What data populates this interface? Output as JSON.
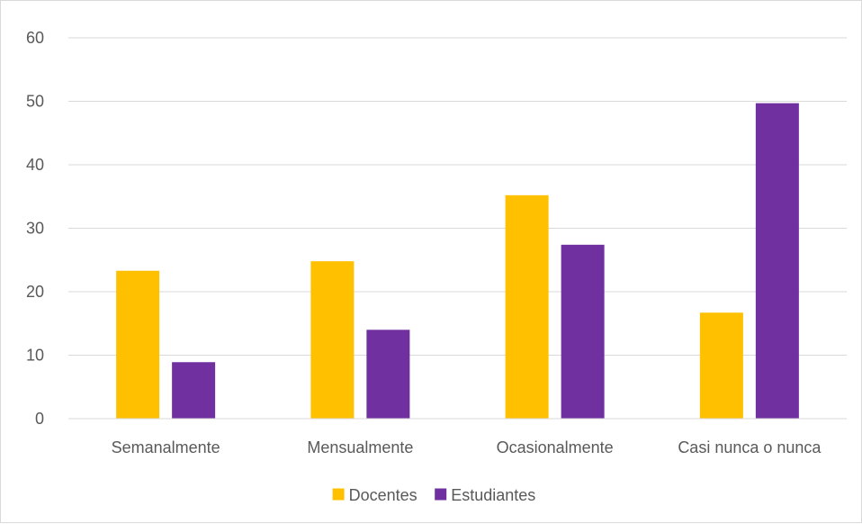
{
  "chart_data": {
    "type": "bar",
    "categories": [
      "Semanalmente",
      "Mensualmente",
      "Ocasionalmente",
      "Casi nunca o nunca"
    ],
    "series": [
      {
        "name": "Docentes",
        "values": [
          23.3,
          24.8,
          35.2,
          16.7
        ],
        "color": "#ffc000"
      },
      {
        "name": "Estudiantes",
        "values": [
          8.9,
          14.0,
          27.4,
          49.7
        ],
        "color": "#7030a0"
      }
    ],
    "yticks": [
      0,
      10,
      20,
      30,
      40,
      50,
      60
    ],
    "ylim": [
      0,
      60
    ],
    "grid": true,
    "legend_position": "bottom",
    "gridline_color": "#d9d9d9",
    "text_color": "#595959"
  }
}
